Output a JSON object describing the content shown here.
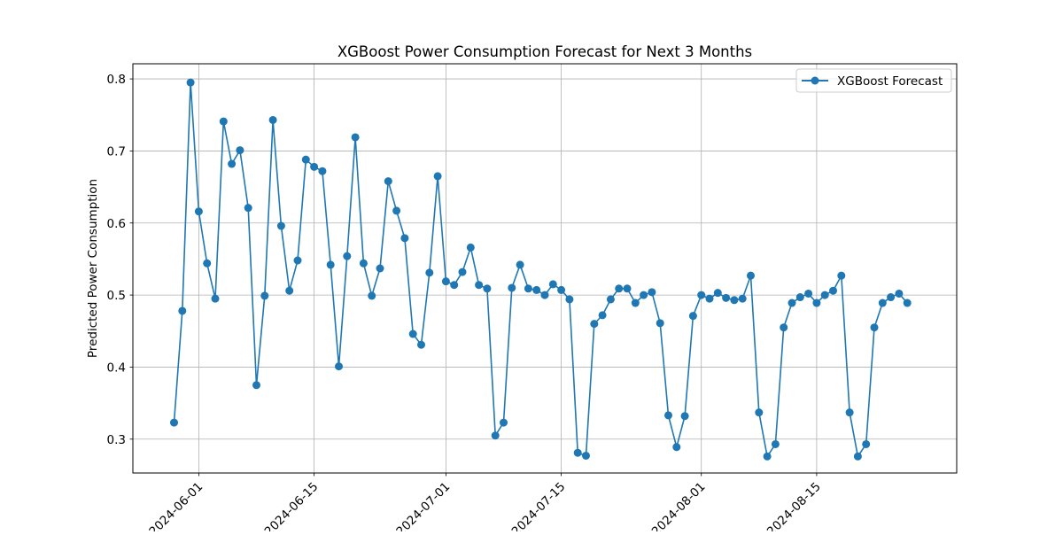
{
  "chart_data": {
    "type": "line",
    "title": "XGBoost Power Consumption Forecast for Next 3 Months",
    "xlabel": "",
    "ylabel": "Predicted Power Consumption",
    "x_ticks": [
      "2024-06-01",
      "2024-06-15",
      "2024-07-01",
      "2024-07-15",
      "2024-08-01",
      "2024-08-15"
    ],
    "y_ticks": [
      0.3,
      0.4,
      0.5,
      0.6,
      0.7,
      0.8
    ],
    "xlim": [
      "2024-05-24",
      "2024-09-01"
    ],
    "ylim": [
      0.253,
      0.821
    ],
    "grid": true,
    "legend_position": "upper right",
    "series": [
      {
        "name": "XGBoost Forecast",
        "color": "#1f77b4",
        "marker": "circle",
        "x": [
          "2024-05-29",
          "2024-05-30",
          "2024-05-31",
          "2024-06-01",
          "2024-06-02",
          "2024-06-03",
          "2024-06-04",
          "2024-06-05",
          "2024-06-06",
          "2024-06-07",
          "2024-06-08",
          "2024-06-09",
          "2024-06-10",
          "2024-06-11",
          "2024-06-12",
          "2024-06-13",
          "2024-06-14",
          "2024-06-15",
          "2024-06-16",
          "2024-06-17",
          "2024-06-18",
          "2024-06-19",
          "2024-06-20",
          "2024-06-21",
          "2024-06-22",
          "2024-06-23",
          "2024-06-24",
          "2024-06-25",
          "2024-06-26",
          "2024-06-27",
          "2024-06-28",
          "2024-06-29",
          "2024-06-30",
          "2024-07-01",
          "2024-07-02",
          "2024-07-03",
          "2024-07-04",
          "2024-07-05",
          "2024-07-06",
          "2024-07-07",
          "2024-07-08",
          "2024-07-09",
          "2024-07-10",
          "2024-07-11",
          "2024-07-12",
          "2024-07-13",
          "2024-07-14",
          "2024-07-15",
          "2024-07-16",
          "2024-07-17",
          "2024-07-18",
          "2024-07-19",
          "2024-07-20",
          "2024-07-21",
          "2024-07-22",
          "2024-07-23",
          "2024-07-24",
          "2024-07-25",
          "2024-07-26",
          "2024-07-27",
          "2024-07-28",
          "2024-07-29",
          "2024-07-30",
          "2024-07-31",
          "2024-08-01",
          "2024-08-02",
          "2024-08-03",
          "2024-08-04",
          "2024-08-05",
          "2024-08-06",
          "2024-08-07",
          "2024-08-08",
          "2024-08-09",
          "2024-08-10",
          "2024-08-11",
          "2024-08-12",
          "2024-08-13",
          "2024-08-14",
          "2024-08-15",
          "2024-08-16",
          "2024-08-17",
          "2024-08-18",
          "2024-08-19",
          "2024-08-20",
          "2024-08-21",
          "2024-08-22",
          "2024-08-23",
          "2024-08-24",
          "2024-08-25",
          "2024-08-26"
        ],
        "values": [
          0.323,
          0.478,
          0.795,
          0.616,
          0.544,
          0.495,
          0.741,
          0.682,
          0.701,
          0.621,
          0.375,
          0.499,
          0.743,
          0.596,
          0.506,
          0.548,
          0.688,
          0.678,
          0.672,
          0.542,
          0.401,
          0.554,
          0.719,
          0.544,
          0.499,
          0.537,
          0.658,
          0.617,
          0.579,
          0.446,
          0.431,
          0.531,
          0.665,
          0.519,
          0.514,
          0.532,
          0.566,
          0.514,
          0.509,
          0.305,
          0.323,
          0.51,
          0.542,
          0.509,
          0.507,
          0.5,
          0.515,
          0.507,
          0.494,
          0.281,
          0.277,
          0.46,
          0.472,
          0.494,
          0.509,
          0.509,
          0.489,
          0.5,
          0.504,
          0.461,
          0.333,
          0.289,
          0.332,
          0.471,
          0.5,
          0.495,
          0.503,
          0.496,
          0.493,
          0.495,
          0.527,
          0.337,
          0.276,
          0.293,
          0.455,
          0.489,
          0.497,
          0.502,
          0.489,
          0.5,
          0.506,
          0.527,
          0.337,
          0.276,
          0.293,
          0.455,
          0.489,
          0.497,
          0.502,
          0.489
        ]
      }
    ]
  }
}
